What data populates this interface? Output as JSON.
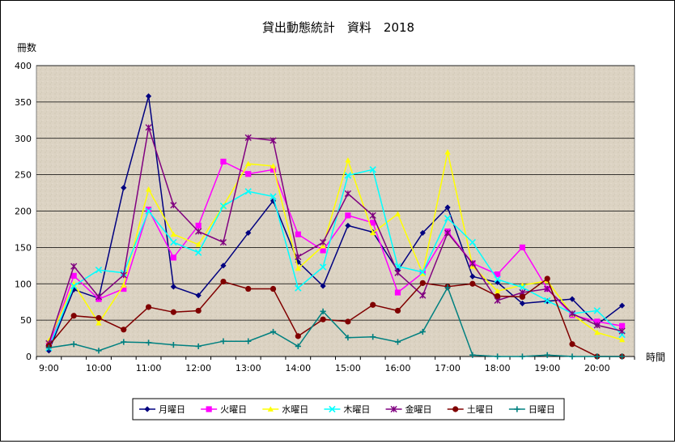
{
  "chart_data": {
    "type": "line",
    "title": "貸出動態統計　資料　2018",
    "ylabel": "冊数",
    "xlabel": "時間",
    "ylim": [
      0,
      400
    ],
    "yticks": [
      0,
      50,
      100,
      150,
      200,
      250,
      300,
      350,
      400
    ],
    "grid": true,
    "legend_position": "bottom",
    "x_tick_labels": [
      "9:00",
      "10:00",
      "11:00",
      "12:00",
      "13:00",
      "14:00",
      "15:00",
      "16:00",
      "17:00",
      "18:00",
      "19:00",
      "20:00"
    ],
    "x": [
      "9:00",
      "9:30",
      "10:00",
      "10:30",
      "11:00",
      "11:30",
      "12:00",
      "12:30",
      "13:00",
      "13:30",
      "14:00",
      "14:30",
      "15:00",
      "15:30",
      "16:00",
      "16:30",
      "17:00",
      "17:30",
      "18:00",
      "18:30",
      "19:00",
      "19:30",
      "20:00",
      "20:30"
    ],
    "series": [
      {
        "name": "月曜日",
        "color": "#000080",
        "marker": "diamond",
        "values": [
          8,
          92,
          80,
          232,
          358,
          96,
          84,
          125,
          170,
          214,
          130,
          97,
          180,
          171,
          118,
          170,
          205,
          110,
          102,
          73,
          76,
          79,
          44,
          70
        ]
      },
      {
        "name": "火曜日",
        "color": "#ff00ff",
        "marker": "square",
        "values": [
          15,
          111,
          79,
          93,
          202,
          136,
          180,
          268,
          251,
          257,
          168,
          146,
          194,
          184,
          88,
          115,
          172,
          128,
          113,
          150,
          93,
          57,
          48,
          42
        ]
      },
      {
        "name": "水曜日",
        "color": "#ffff00",
        "marker": "triangle",
        "values": [
          22,
          100,
          46,
          98,
          230,
          168,
          154,
          207,
          265,
          262,
          121,
          152,
          270,
          170,
          196,
          114,
          281,
          124,
          90,
          98,
          104,
          58,
          33,
          23
        ]
      },
      {
        "name": "木曜日",
        "color": "#00ffff",
        "marker": "x",
        "values": [
          12,
          97,
          119,
          115,
          200,
          157,
          143,
          207,
          227,
          220,
          94,
          123,
          249,
          257,
          124,
          116,
          190,
          157,
          106,
          95,
          77,
          59,
          63,
          30
        ]
      },
      {
        "name": "金曜日",
        "color": "#800080",
        "marker": "star",
        "values": [
          18,
          124,
          82,
          112,
          315,
          208,
          172,
          157,
          301,
          297,
          137,
          157,
          224,
          194,
          115,
          84,
          170,
          128,
          77,
          88,
          93,
          59,
          43,
          35
        ]
      },
      {
        "name": "土曜日",
        "color": "#800000",
        "marker": "circle",
        "values": [
          15,
          56,
          53,
          37,
          68,
          61,
          63,
          103,
          93,
          93,
          28,
          51,
          48,
          71,
          63,
          101,
          96,
          100,
          83,
          82,
          107,
          17,
          0,
          0
        ]
      },
      {
        "name": "日曜日",
        "color": "#008080",
        "marker": "plus",
        "values": [
          12,
          17,
          8,
          20,
          19,
          16,
          14,
          21,
          21,
          34,
          14,
          62,
          26,
          27,
          20,
          34,
          95,
          2,
          0,
          0,
          2,
          0,
          0,
          0
        ]
      }
    ]
  }
}
